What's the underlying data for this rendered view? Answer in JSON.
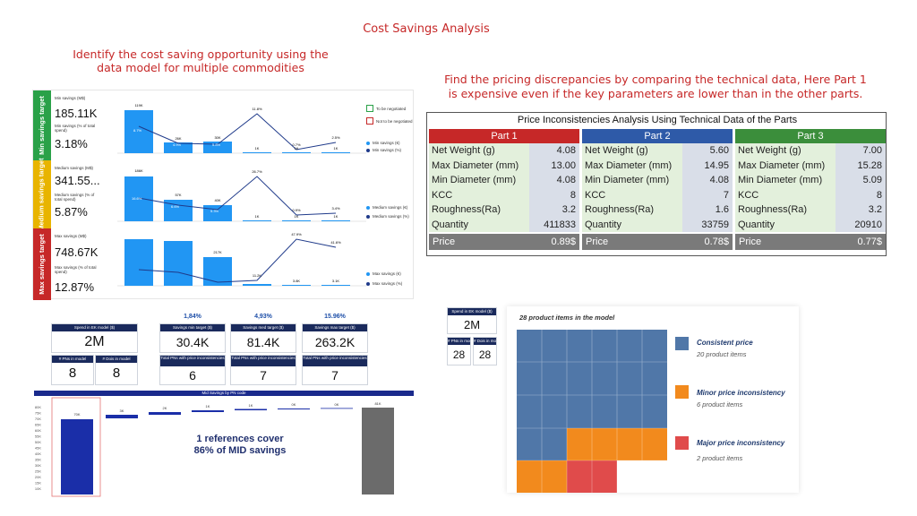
{
  "page": {
    "title": "Cost Savings Analysis",
    "left_subtitle": [
      "Identify the cost saving opportunity using the",
      "data model for multiple commodities"
    ],
    "right_subtitle": [
      "Find the pricing discrepancies by comparing the technical data, Here Part 1",
      "is expensive even if the key parameters are lower than in the other parts."
    ]
  },
  "dashboard": {
    "legend": {
      "to_be_negotiated": "To be negotiated",
      "not_to_be_negotiated": "Not to be negotiated"
    },
    "panels": [
      {
        "band": "Min savings target",
        "band_color": "#2aa148",
        "savings_label": "Min savings (M$)",
        "savings_value": "185.11K",
        "pct_label": "Min savings (% of total spend)",
        "pct_value": "3.18%",
        "legend_bar": "Min savings (€)",
        "legend_line": "Min savings (%)",
        "bar_labels": [
          "119K",
          "26K",
          "30K",
          "1K",
          "1K",
          "1K"
        ],
        "inner_labels": [
          "8.7%",
          "4.9%",
          "5.8%",
          "",
          "",
          ""
        ],
        "line_labels": [
          "",
          "",
          "",
          "11.8%",
          "0.7%",
          "2.5%"
        ]
      },
      {
        "band": "Medium savings target",
        "band_color": "#e8b400",
        "savings_label": "Medium savings (M$)",
        "savings_value": "341.55...",
        "pct_label": "Medium savings (% of total spend)",
        "pct_value": "5.87%",
        "legend_bar": "Medium savings (€)",
        "legend_line": "Medium savings (%)",
        "bar_labels": [
          "186K",
          "57K",
          "40K",
          "1K",
          "1K",
          "1K"
        ],
        "inner_labels": [
          "16.6%",
          "6.6%",
          "5.3%",
          "",
          "",
          ""
        ],
        "line_labels": [
          "",
          "",
          "",
          "26.7%",
          "0.9%",
          "3.4%"
        ]
      },
      {
        "band": "Max savings target",
        "band_color": "#c62828",
        "savings_label": "Max savings (M$)",
        "savings_value": "748.67K",
        "pct_label": "Max savings (% of total spend)",
        "pct_value": "12.87%",
        "legend_bar": "Max savings (€)",
        "legend_line": "Max savings (%)",
        "bar_labels": [
          "",
          "",
          "217K",
          "11.2K",
          "3.8K",
          "3.1K"
        ],
        "inner_labels": [
          "",
          "",
          "",
          "",
          "",
          ""
        ],
        "line_labels": [
          "",
          "",
          "",
          "",
          "47.9%",
          "41.6%"
        ]
      }
    ]
  },
  "price_table": {
    "title": "Price Inconsistencies Analysis Using Technical Data of the Parts",
    "parts": [
      {
        "name": "Part 1",
        "color": "#c62828",
        "price_label": "Price",
        "price": "0.89$",
        "rows": [
          [
            "Net Weight (g)",
            "4.08"
          ],
          [
            "Max Diameter (mm)",
            "13.00"
          ],
          [
            "Min Diameter (mm)",
            "4.08"
          ],
          [
            "KCC",
            "8"
          ],
          [
            "Roughness(Ra)",
            "3.2"
          ],
          [
            "Quantity",
            "411833"
          ]
        ]
      },
      {
        "name": "Part 2",
        "color": "#2e5aa8",
        "price_label": "Price",
        "price": "0.78$",
        "rows": [
          [
            "Net Weight (g)",
            "5.60"
          ],
          [
            "Max Diameter (mm)",
            "14.95"
          ],
          [
            "Min Diameter (mm)",
            "4.08"
          ],
          [
            "KCC",
            "7"
          ],
          [
            "Roughness(Ra)",
            "1.6"
          ],
          [
            "Quantity",
            "33759"
          ]
        ]
      },
      {
        "name": "Part 3",
        "color": "#3b8e3b",
        "price_label": "Price",
        "price": "0.77$",
        "rows": [
          [
            "Net Weight (g)",
            "7.00"
          ],
          [
            "Max Diameter (mm)",
            "15.28"
          ],
          [
            "Min Diameter (mm)",
            "5.09"
          ],
          [
            "KCC",
            "8"
          ],
          [
            "Roughness(Ra)",
            "3.2"
          ],
          [
            "Quantity",
            "20910"
          ]
        ]
      }
    ]
  },
  "kpis": {
    "spend": {
      "label": "Spend in EK model ($)",
      "value": "2M"
    },
    "pns": {
      "label": "# PNs in model",
      "value": "8"
    },
    "dois": {
      "label": "# Dois in model",
      "value": "8"
    },
    "targets": [
      {
        "pct": "1,84%",
        "label": "Savings min target ($)",
        "value": "30.4K",
        "sub_label": "Total PNs with price inconsistencies",
        "sub_value": "6"
      },
      {
        "pct": "4,93%",
        "label": "Savings med target ($)",
        "value": "81.4K",
        "sub_label": "Total PNs with price inconsistencies",
        "sub_value": "7"
      },
      {
        "pct": "15.96%",
        "label": "Savings max target ($)",
        "value": "263.2K",
        "sub_label": "Total PNs with price inconsistencies",
        "sub_value": "7"
      }
    ]
  },
  "waterfall": {
    "title": "Mid Savings by PN code",
    "annotation": [
      "1 references cover",
      "86% of MID savings"
    ],
    "y_ticks": [
      "80K",
      "75K",
      "70K",
      "65K",
      "60K",
      "55K",
      "50K",
      "45K",
      "40K",
      "35K",
      "30K",
      "25K",
      "20K",
      "15K",
      "10K",
      "5K",
      "0K"
    ],
    "bar_labels": [
      "70K",
      "3K",
      "2K",
      "1K",
      "1K",
      "0K",
      "0K",
      "81K"
    ]
  },
  "mosaic": {
    "kpi_spend_label": "Spend in EK model ($)",
    "kpi_spend": "2M",
    "kpi_pns_label": "# PNs in model",
    "kpi_pns": "28",
    "kpi_dois_label": "# Dois in model",
    "kpi_dois": "28",
    "title": "28 product items in the model",
    "legend": [
      {
        "label": "Consistent price",
        "sub": "20 product items",
        "color": "#5077a8"
      },
      {
        "label": "Minor price inconsistency",
        "sub": "6 product items",
        "color": "#f28a1d"
      },
      {
        "label": "Major price inconsistency",
        "sub": "2 product items",
        "color": "#e04b4b"
      }
    ]
  }
}
